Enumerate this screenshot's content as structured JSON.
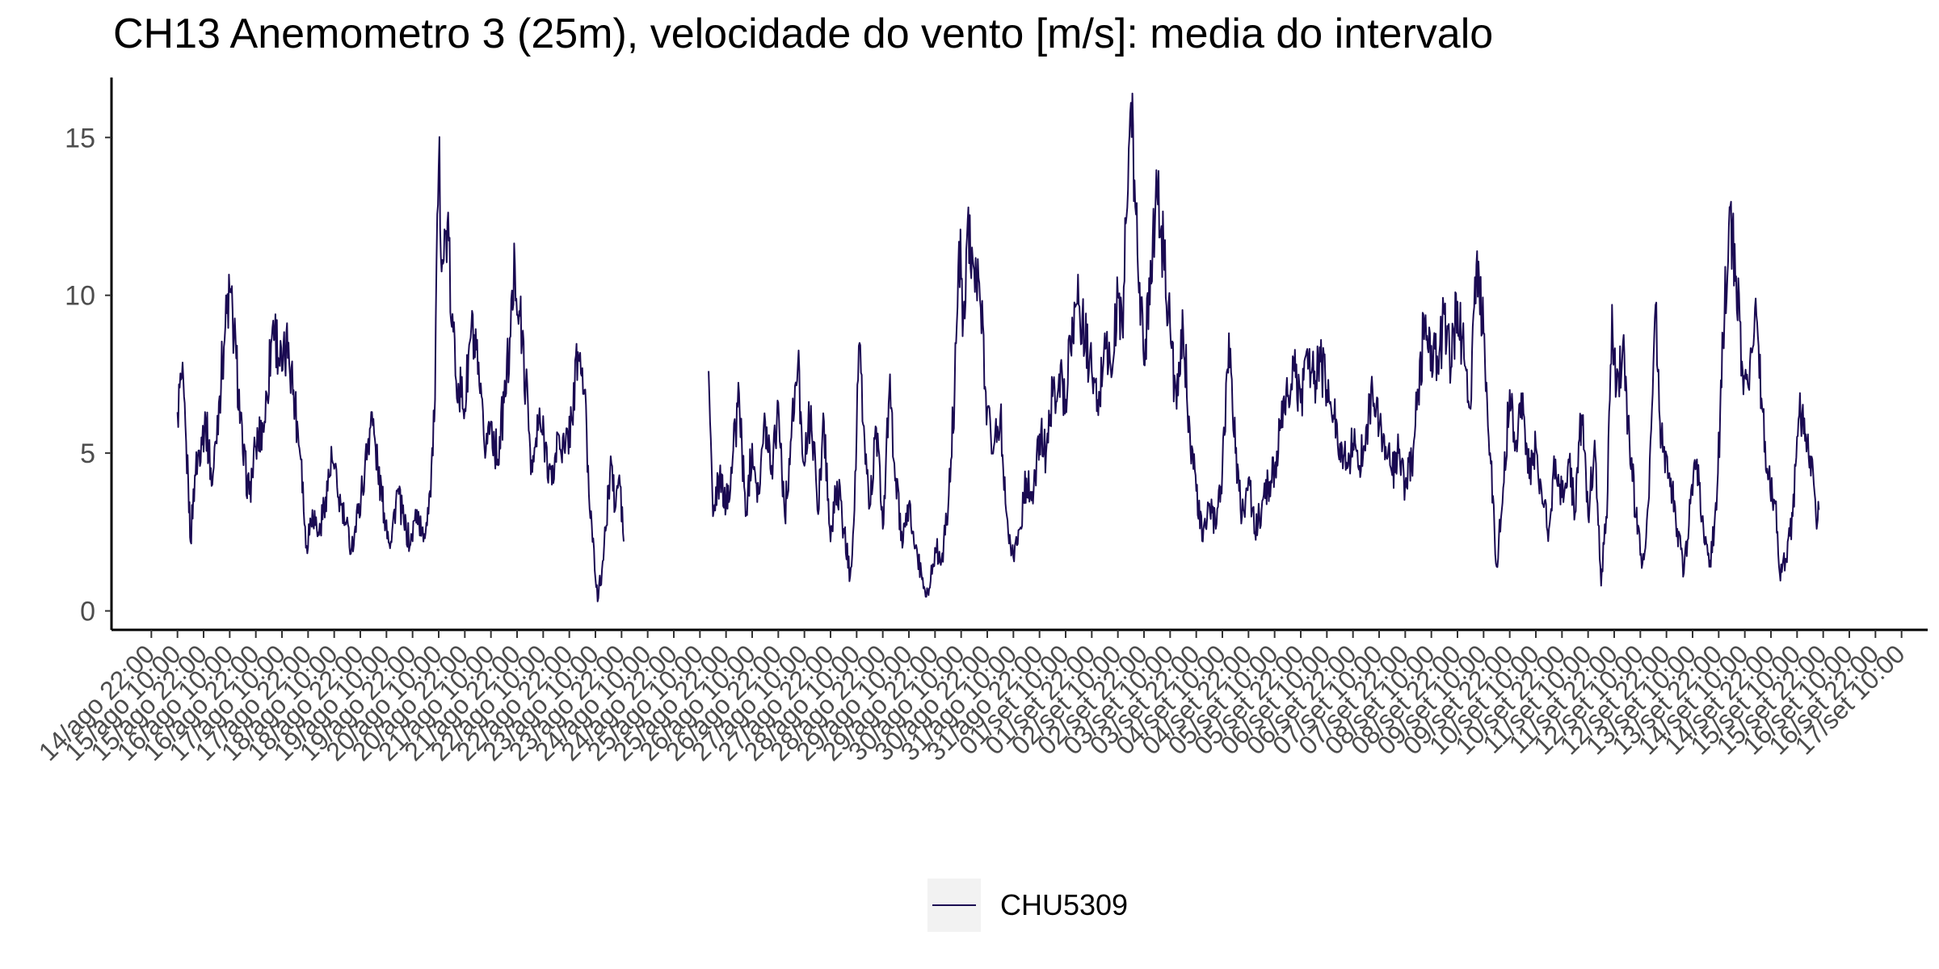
{
  "chart_data": {
    "type": "line",
    "title": "CH13 Anemometro 3 (25m), velocidade do vento [m/s]: media do intervalo",
    "xlabel": "",
    "ylabel": "",
    "ylim": [
      -0.6,
      16.9
    ],
    "y_ticks": [
      0,
      5,
      10,
      15
    ],
    "x_range": [
      "14/ago 10:00",
      "17/set 22:00"
    ],
    "x_tick_labels": [
      "14/ago 22:00",
      "15/ago 10:00",
      "15/ago 22:00",
      "16/ago 10:00",
      "16/ago 22:00",
      "17/ago 10:00",
      "17/ago 22:00",
      "18/ago 10:00",
      "18/ago 22:00",
      "19/ago 10:00",
      "19/ago 22:00",
      "20/ago 10:00",
      "20/ago 22:00",
      "21/ago 10:00",
      "21/ago 22:00",
      "22/ago 10:00",
      "22/ago 22:00",
      "23/ago 10:00",
      "23/ago 22:00",
      "24/ago 10:00",
      "24/ago 22:00",
      "25/ago 10:00",
      "25/ago 22:00",
      "26/ago 10:00",
      "26/ago 22:00",
      "27/ago 10:00",
      "27/ago 22:00",
      "28/ago 10:00",
      "28/ago 22:00",
      "29/ago 10:00",
      "29/ago 22:00",
      "30/ago 10:00",
      "30/ago 22:00",
      "31/ago 10:00",
      "31/ago 22:00",
      "01/set 10:00",
      "01/set 22:00",
      "02/set 10:00",
      "02/set 22:00",
      "03/set 10:00",
      "03/set 22:00",
      "04/set 10:00",
      "04/set 22:00",
      "05/set 10:00",
      "05/set 22:00",
      "06/set 10:00",
      "06/set 22:00",
      "07/set 10:00",
      "07/set 22:00",
      "08/set 10:00",
      "08/set 22:00",
      "09/set 10:00",
      "09/set 22:00",
      "10/set 10:00",
      "10/set 22:00",
      "11/set 10:00",
      "11/set 22:00",
      "12/set 10:00",
      "12/set 22:00",
      "13/set 10:00",
      "13/set 22:00",
      "14/set 10:00",
      "14/set 22:00",
      "15/set 10:00",
      "15/set 22:00",
      "16/set 10:00",
      "16/set 22:00",
      "17/set 10:00"
    ],
    "grid": false,
    "legend_position": "bottom",
    "series": [
      {
        "name": "CHU5309",
        "color": "#1a0a52",
        "points": [
          [
            "15/ago 10:00",
            6.3
          ],
          [
            "15/ago 12:00",
            7.4
          ],
          [
            "15/ago 15:00",
            4.0
          ],
          [
            "15/ago 16:00",
            2.2
          ],
          [
            "15/ago 18:00",
            4.3
          ],
          [
            "15/ago 21:00",
            5.5
          ],
          [
            "15/ago 23:00",
            6.0
          ],
          [
            "16/ago 02:00",
            4.0
          ],
          [
            "16/ago 05:00",
            6.6
          ],
          [
            "16/ago 08:00",
            9.0
          ],
          [
            "16/ago 10:00",
            10.1
          ],
          [
            "16/ago 13:00",
            8.0
          ],
          [
            "16/ago 16:00",
            5.0
          ],
          [
            "16/ago 19:00",
            3.7
          ],
          [
            "16/ago 22:00",
            5.2
          ],
          [
            "17/ago 02:00",
            6.0
          ],
          [
            "17/ago 06:00",
            9.2
          ],
          [
            "17/ago 10:00",
            7.6
          ],
          [
            "17/ago 13:00",
            8.5
          ],
          [
            "17/ago 16:00",
            6.5
          ],
          [
            "17/ago 19:00",
            4.8
          ],
          [
            "17/ago 21:00",
            2.0
          ],
          [
            "18/ago 00:00",
            3.2
          ],
          [
            "18/ago 03:00",
            2.4
          ],
          [
            "18/ago 06:00",
            3.6
          ],
          [
            "18/ago 09:00",
            4.8
          ],
          [
            "18/ago 12:00",
            3.6
          ],
          [
            "18/ago 15:00",
            2.8
          ],
          [
            "18/ago 18:00",
            2.0
          ],
          [
            "18/ago 21:00",
            3.1
          ],
          [
            "19/ago 00:00",
            4.4
          ],
          [
            "19/ago 03:00",
            6.3
          ],
          [
            "19/ago 06:00",
            4.5
          ],
          [
            "19/ago 09:00",
            3.1
          ],
          [
            "19/ago 12:00",
            2.2
          ],
          [
            "19/ago 15:00",
            3.8
          ],
          [
            "19/ago 18:00",
            2.8
          ],
          [
            "19/ago 21:00",
            2.1
          ],
          [
            "20/ago 00:00",
            3.2
          ],
          [
            "20/ago 03:00",
            2.2
          ],
          [
            "20/ago 06:00",
            3.8
          ],
          [
            "20/ago 08:00",
            6.0
          ],
          [
            "20/ago 10:00",
            14.1
          ],
          [
            "20/ago 12:00",
            11.0
          ],
          [
            "20/ago 14:00",
            12.3
          ],
          [
            "20/ago 16:00",
            9.0
          ],
          [
            "20/ago 19:00",
            7.2
          ],
          [
            "20/ago 22:00",
            6.4
          ],
          [
            "21/ago 01:00",
            9.0
          ],
          [
            "21/ago 04:00",
            7.5
          ],
          [
            "21/ago 07:00",
            5.2
          ],
          [
            "21/ago 10:00",
            6.0
          ],
          [
            "21/ago 13:00",
            4.8
          ],
          [
            "21/ago 16:00",
            6.6
          ],
          [
            "21/ago 19:00",
            8.7
          ],
          [
            "21/ago 21:00",
            11.0
          ],
          [
            "21/ago 23:00",
            9.5
          ],
          [
            "22/ago 02:00",
            7.2
          ],
          [
            "22/ago 05:00",
            4.4
          ],
          [
            "22/ago 08:00",
            6.0
          ],
          [
            "22/ago 11:00",
            5.3
          ],
          [
            "22/ago 14:00",
            4.0
          ],
          [
            "22/ago 17:00",
            5.6
          ],
          [
            "22/ago 20:00",
            5.0
          ],
          [
            "22/ago 23:00",
            6.1
          ],
          [
            "23/ago 02:00",
            8.2
          ],
          [
            "23/ago 05:00",
            7.0
          ],
          [
            "23/ago 07:00",
            3.7
          ],
          [
            "23/ago 09:00",
            2.3
          ],
          [
            "23/ago 11:00",
            0.3
          ],
          [
            "23/ago 13:00",
            1.3
          ],
          [
            "23/ago 15:00",
            2.7
          ],
          [
            "23/ago 17:00",
            4.9
          ],
          [
            "23/ago 19:00",
            3.2
          ],
          [
            "23/ago 21:00",
            4.3
          ],
          [
            "23/ago 23:00",
            2.2
          ],
          null,
          [
            "25/ago 14:00",
            7.6
          ],
          [
            "25/ago 16:00",
            3.0
          ],
          [
            "25/ago 19:00",
            4.2
          ],
          [
            "25/ago 22:00",
            3.3
          ],
          [
            "26/ago 01:00",
            4.8
          ],
          [
            "26/ago 04:00",
            6.9
          ],
          [
            "26/ago 07:00",
            3.0
          ],
          [
            "26/ago 10:00",
            5.3
          ],
          [
            "26/ago 13:00",
            3.7
          ],
          [
            "26/ago 16:00",
            6.0
          ],
          [
            "26/ago 19:00",
            4.6
          ],
          [
            "26/ago 22:00",
            6.6
          ],
          [
            "27/ago 01:00",
            3.0
          ],
          [
            "27/ago 04:00",
            5.5
          ],
          [
            "27/ago 07:00",
            7.8
          ],
          [
            "27/ago 10:00",
            4.6
          ],
          [
            "27/ago 13:00",
            6.5
          ],
          [
            "27/ago 16:00",
            3.2
          ],
          [
            "27/ago 19:00",
            6.0
          ],
          [
            "27/ago 22:00",
            2.2
          ],
          [
            "28/ago 01:00",
            4.1
          ],
          [
            "28/ago 04:00",
            2.6
          ],
          [
            "28/ago 07:00",
            1.1
          ],
          [
            "28/ago 09:00",
            3.2
          ],
          [
            "28/ago 11:00",
            8.4
          ],
          [
            "28/ago 13:00",
            5.9
          ],
          [
            "28/ago 16:00",
            3.3
          ],
          [
            "28/ago 19:00",
            5.8
          ],
          [
            "28/ago 22:00",
            2.6
          ],
          [
            "29/ago 01:00",
            7.0
          ],
          [
            "29/ago 04:00",
            4.2
          ],
          [
            "29/ago 07:00",
            2.0
          ],
          [
            "29/ago 10:00",
            3.4
          ],
          [
            "29/ago 13:00",
            2.0
          ],
          [
            "29/ago 16:00",
            1.0
          ],
          [
            "29/ago 19:00",
            0.5
          ],
          [
            "29/ago 22:00",
            2.0
          ],
          [
            "30/ago 01:00",
            1.6
          ],
          [
            "30/ago 04:00",
            3.2
          ],
          [
            "30/ago 07:00",
            7.0
          ],
          [
            "30/ago 09:00",
            11.7
          ],
          [
            "30/ago 11:00",
            9.4
          ],
          [
            "30/ago 13:00",
            12.4
          ],
          [
            "30/ago 16:00",
            10.8
          ],
          [
            "30/ago 19:00",
            9.6
          ],
          [
            "30/ago 22:00",
            6.4
          ],
          [
            "31/ago 01:00",
            5.2
          ],
          [
            "31/ago 04:00",
            6.2
          ],
          [
            "31/ago 07:00",
            3.0
          ],
          [
            "31/ago 10:00",
            1.7
          ],
          [
            "31/ago 13:00",
            2.6
          ],
          [
            "31/ago 16:00",
            4.2
          ],
          [
            "31/ago 19:00",
            3.4
          ],
          [
            "31/ago 22:00",
            5.6
          ],
          [
            "01/set 01:00",
            5.0
          ],
          [
            "01/set 04:00",
            6.8
          ],
          [
            "01/set 07:00",
            7.5
          ],
          [
            "01/set 10:00",
            6.7
          ],
          [
            "01/set 13:00",
            9.3
          ],
          [
            "01/set 16:00",
            9.7
          ],
          [
            "01/set 19:00",
            8.6
          ],
          [
            "01/set 22:00",
            7.6
          ],
          [
            "02/set 01:00",
            6.2
          ],
          [
            "02/set 04:00",
            8.8
          ],
          [
            "02/set 07:00",
            7.4
          ],
          [
            "02/set 10:00",
            10.0
          ],
          [
            "02/set 12:00",
            9.0
          ],
          [
            "02/set 14:00",
            12.5
          ],
          [
            "02/set 16:00",
            16.1
          ],
          [
            "02/set 18:00",
            12.8
          ],
          [
            "02/set 20:00",
            10.4
          ],
          [
            "02/set 22:00",
            7.8
          ],
          [
            "03/set 01:00",
            11.1
          ],
          [
            "03/set 04:00",
            13.2
          ],
          [
            "03/set 07:00",
            11.4
          ],
          [
            "03/set 10:00",
            9.0
          ],
          [
            "03/set 13:00",
            6.4
          ],
          [
            "03/set 16:00",
            8.9
          ],
          [
            "03/set 19:00",
            5.8
          ],
          [
            "03/set 22:00",
            3.8
          ],
          [
            "04/set 01:00",
            2.2
          ],
          [
            "04/set 04:00",
            3.4
          ],
          [
            "04/set 07:00",
            2.6
          ],
          [
            "04/set 10:00",
            4.5
          ],
          [
            "04/set 13:00",
            8.8
          ],
          [
            "04/set 16:00",
            5.0
          ],
          [
            "04/set 19:00",
            3.0
          ],
          [
            "04/set 22:00",
            4.2
          ],
          [
            "05/set 01:00",
            2.5
          ],
          [
            "05/set 04:00",
            3.2
          ],
          [
            "05/set 07:00",
            4.0
          ],
          [
            "05/set 10:00",
            4.5
          ],
          [
            "05/set 13:00",
            5.8
          ],
          [
            "05/set 16:00",
            6.8
          ],
          [
            "05/set 19:00",
            7.6
          ],
          [
            "05/set 22:00",
            6.6
          ],
          [
            "06/set 01:00",
            8.3
          ],
          [
            "06/set 04:00",
            7.2
          ],
          [
            "06/set 07:00",
            7.9
          ],
          [
            "06/set 10:00",
            7.0
          ],
          [
            "06/set 13:00",
            6.2
          ],
          [
            "06/set 16:00",
            5.3
          ],
          [
            "06/set 19:00",
            4.7
          ],
          [
            "06/set 22:00",
            5.3
          ],
          [
            "07/set 01:00",
            4.6
          ],
          [
            "07/set 04:00",
            5.8
          ],
          [
            "07/set 07:00",
            7.0
          ],
          [
            "07/set 10:00",
            5.8
          ],
          [
            "07/set 13:00",
            5.2
          ],
          [
            "07/set 16:00",
            4.3
          ],
          [
            "07/set 19:00",
            5.0
          ],
          [
            "07/set 22:00",
            4.0
          ],
          [
            "08/set 01:00",
            4.6
          ],
          [
            "08/set 04:00",
            7.0
          ],
          [
            "08/set 07:00",
            9.2
          ],
          [
            "08/set 10:00",
            8.4
          ],
          [
            "08/set 13:00",
            7.6
          ],
          [
            "08/set 16:00",
            9.4
          ],
          [
            "08/set 19:00",
            7.7
          ],
          [
            "08/set 22:00",
            9.8
          ],
          [
            "09/set 01:00",
            8.0
          ],
          [
            "09/set 04:00",
            6.4
          ],
          [
            "09/set 07:00",
            11.4
          ],
          [
            "09/set 10:00",
            8.8
          ],
          [
            "09/set 13:00",
            5.0
          ],
          [
            "09/set 16:00",
            1.4
          ],
          [
            "09/set 19:00",
            3.9
          ],
          [
            "09/set 22:00",
            7.0
          ],
          [
            "10/set 01:00",
            5.4
          ],
          [
            "10/set 04:00",
            6.9
          ],
          [
            "10/set 07:00",
            4.2
          ],
          [
            "10/set 10:00",
            5.2
          ],
          [
            "10/set 13:00",
            3.4
          ],
          [
            "10/set 16:00",
            2.6
          ],
          [
            "10/set 19:00",
            4.8
          ],
          [
            "10/set 22:00",
            3.6
          ],
          [
            "11/set 01:00",
            4.8
          ],
          [
            "11/set 04:00",
            3.1
          ],
          [
            "11/set 07:00",
            6.2
          ],
          [
            "11/set 10:00",
            3.0
          ],
          [
            "11/set 13:00",
            5.4
          ],
          [
            "11/set 16:00",
            0.8
          ],
          [
            "11/set 19:00",
            3.8
          ],
          [
            "11/set 21:00",
            9.7
          ],
          [
            "11/set 23:00",
            7.0
          ],
          [
            "12/set 02:00",
            8.5
          ],
          [
            "12/set 05:00",
            5.4
          ],
          [
            "12/set 08:00",
            3.0
          ],
          [
            "12/set 11:00",
            1.5
          ],
          [
            "12/set 14:00",
            3.6
          ],
          [
            "12/set 17:00",
            9.7
          ],
          [
            "12/set 19:00",
            6.0
          ],
          [
            "12/set 21:00",
            5.2
          ],
          [
            "13/set 00:00",
            4.2
          ],
          [
            "13/set 03:00",
            2.6
          ],
          [
            "13/set 06:00",
            1.2
          ],
          [
            "13/set 09:00",
            3.4
          ],
          [
            "13/set 12:00",
            4.8
          ],
          [
            "13/set 15:00",
            2.6
          ],
          [
            "13/set 18:00",
            1.6
          ],
          [
            "13/set 21:00",
            3.2
          ],
          [
            "14/set 00:00",
            8.6
          ],
          [
            "14/set 03:00",
            12.8
          ],
          [
            "14/set 06:00",
            10.6
          ],
          [
            "14/set 09:00",
            7.6
          ],
          [
            "14/set 12:00",
            7.0
          ],
          [
            "14/set 15:00",
            9.9
          ],
          [
            "14/set 18:00",
            6.4
          ],
          [
            "14/set 21:00",
            4.2
          ],
          [
            "15/set 00:00",
            3.4
          ],
          [
            "15/set 02:00",
            1.2
          ],
          [
            "15/set 05:00",
            1.6
          ],
          [
            "15/set 08:00",
            3.0
          ],
          [
            "15/set 11:00",
            6.2
          ],
          [
            "15/set 14:00",
            5.6
          ],
          [
            "15/set 17:00",
            4.8
          ],
          [
            "15/set 19:00",
            2.6
          ],
          [
            "15/set 20:00",
            3.2
          ]
        ]
      }
    ]
  }
}
